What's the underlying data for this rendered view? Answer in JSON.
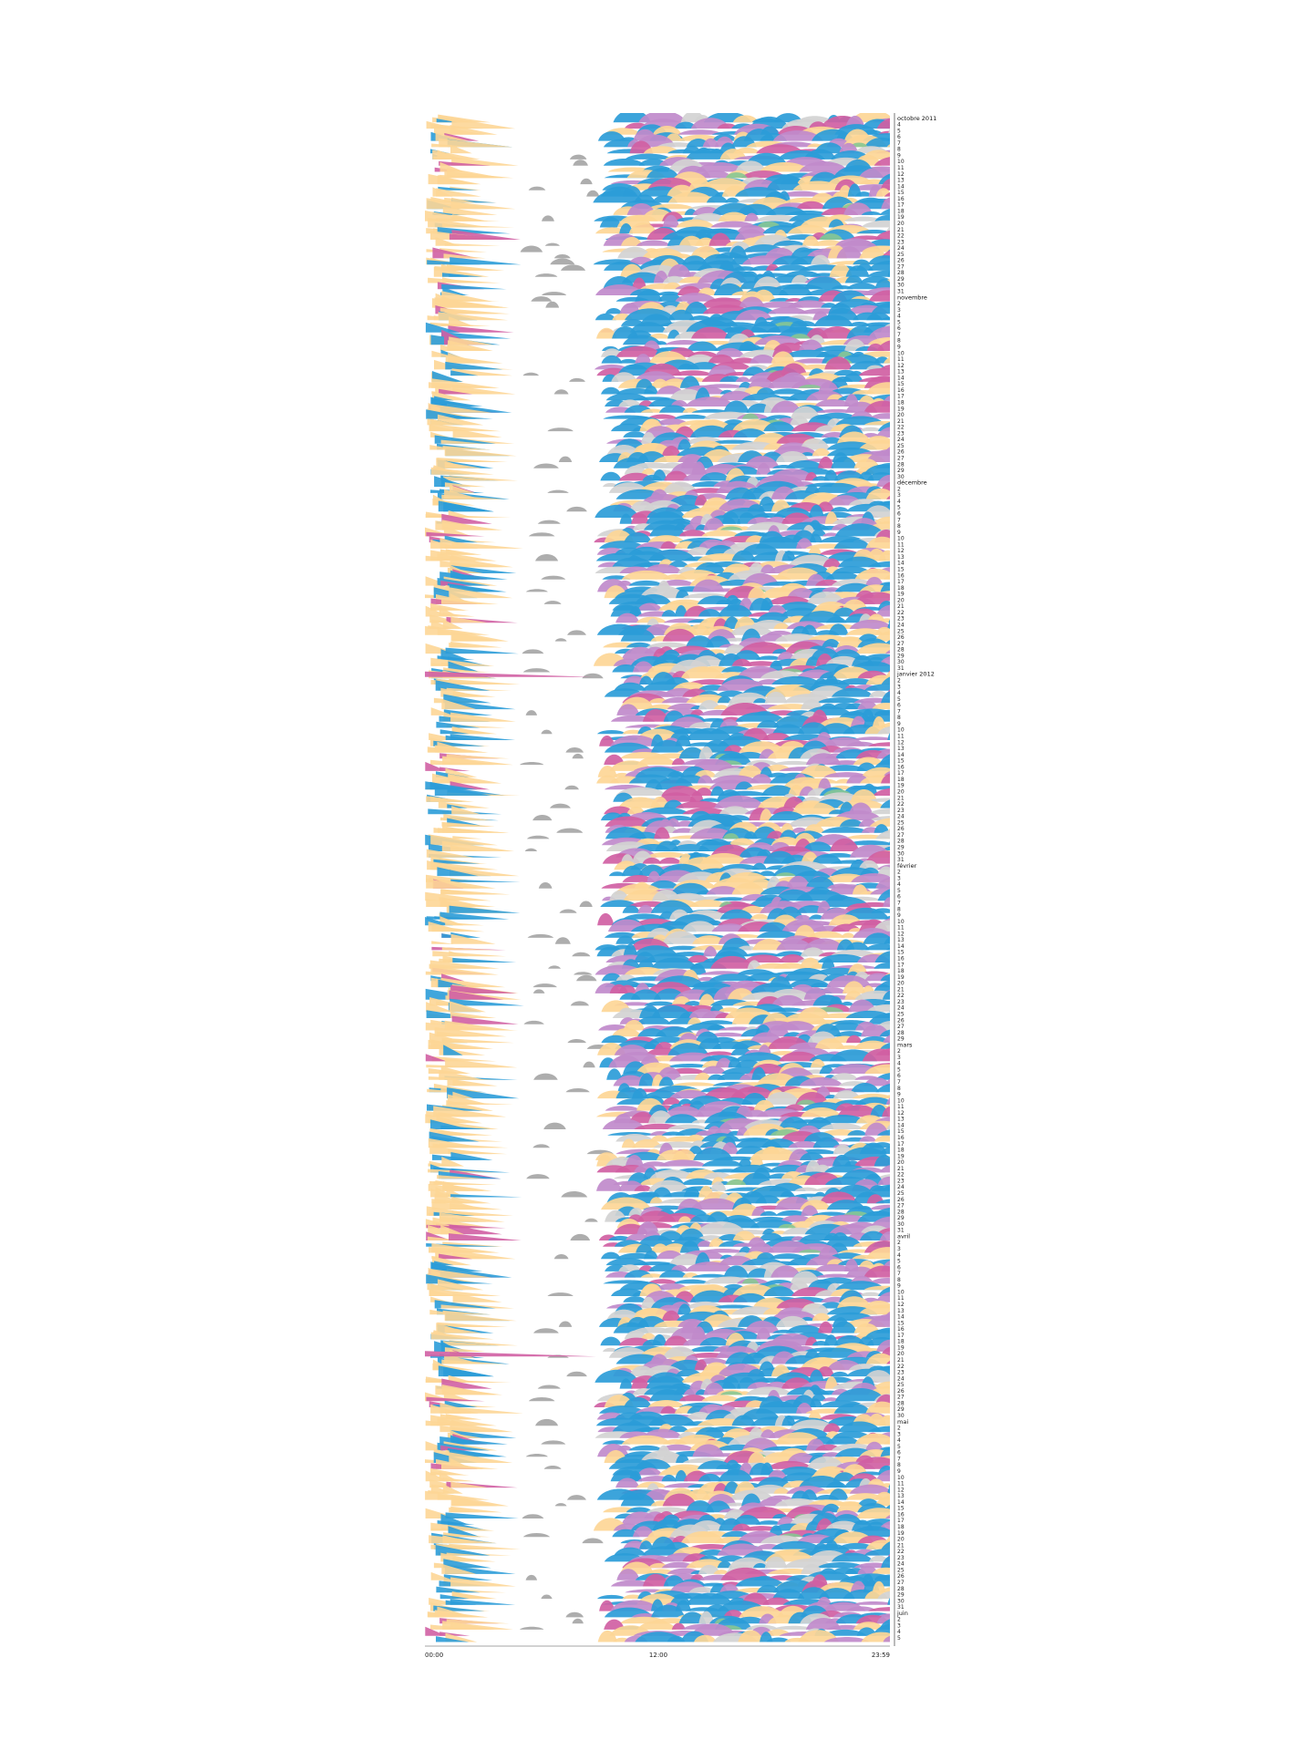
{
  "chart_data": {
    "type": "area",
    "description_free": true,
    "x_ticks": [
      "00:00",
      "12:00",
      "23:59"
    ],
    "x_range": [
      "00:00",
      "23:59"
    ],
    "grid": false,
    "palette": {
      "blue": "#2b9cd8",
      "orange": "#fdd696",
      "magenta": "#d05fa3",
      "lilac": "#c08acb",
      "grey": "#a9a9a9",
      "lightgrey": "#d3d3d3",
      "green": "#87c792"
    },
    "months": [
      {
        "label": "octobre 2011",
        "first_day": 3,
        "days": 29
      },
      {
        "label": "novembre",
        "first_day": 1,
        "days": 30
      },
      {
        "label": "décembre",
        "first_day": 1,
        "days": 31
      },
      {
        "label": "janvier 2012",
        "first_day": 1,
        "days": 31
      },
      {
        "label": "février",
        "first_day": 1,
        "days": 29
      },
      {
        "label": "mars",
        "first_day": 1,
        "days": 31
      },
      {
        "label": "avril",
        "first_day": 1,
        "days": 30
      },
      {
        "label": "mai",
        "first_day": 1,
        "days": 31
      },
      {
        "label": "juin",
        "first_day": 1,
        "days": 5
      }
    ]
  }
}
